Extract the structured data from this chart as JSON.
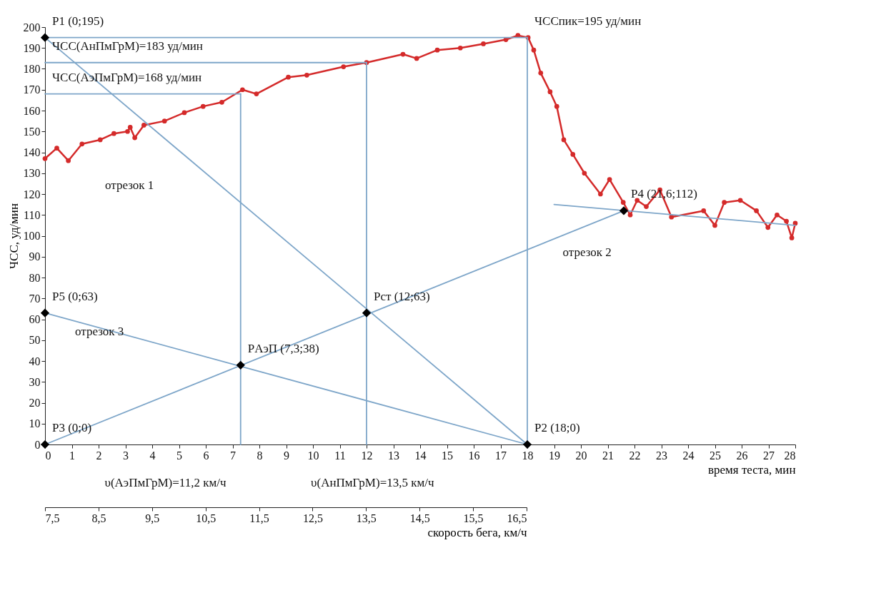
{
  "chart_data": {
    "type": "line",
    "xlabel": "время теста, мин",
    "ylabel": "ЧСС, уд/мин",
    "x2label": "скорость бега, км/ч",
    "xlim": [
      0,
      28
    ],
    "xticks": [
      0,
      1,
      2,
      3,
      4,
      5,
      6,
      7,
      8,
      9,
      10,
      11,
      12,
      13,
      14,
      15,
      16,
      17,
      18,
      19,
      20,
      21,
      22,
      23,
      24,
      25,
      26,
      27,
      28
    ],
    "ylim": [
      0,
      200
    ],
    "yticks": [
      0,
      10,
      20,
      30,
      40,
      50,
      60,
      70,
      80,
      90,
      100,
      110,
      120,
      130,
      140,
      150,
      160,
      170,
      180,
      190,
      200
    ],
    "x2lim": [
      7.5,
      16.5
    ],
    "x2ticks": [
      {
        "value": 7.5,
        "label": "7,5"
      },
      {
        "value": 8.5,
        "label": "8,5"
      },
      {
        "value": 9.5,
        "label": "9,5"
      },
      {
        "value": 10.5,
        "label": "10,5"
      },
      {
        "value": 11.5,
        "label": "11,5"
      },
      {
        "value": 12.5,
        "label": "12,5"
      },
      {
        "value": 13.5,
        "label": "13,5"
      },
      {
        "value": 14.5,
        "label": "14,5"
      },
      {
        "value": 15.5,
        "label": "15,5"
      },
      {
        "value": 16.5,
        "label": "16,5"
      }
    ],
    "grid": false,
    "series": [
      {
        "marker": "circle",
        "color": "#d42a2a",
        "x": [
          0,
          0.44,
          0.87,
          1.38,
          2.06,
          2.57,
          3.08,
          3.18,
          3.35,
          3.69,
          4.46,
          5.2,
          5.9,
          6.6,
          7.37,
          7.89,
          9.08,
          9.77,
          11.14,
          12.0,
          13.36,
          13.87,
          14.64,
          15.5,
          16.36,
          17.2,
          17.65,
          18.03,
          18.24,
          18.5,
          18.85,
          19.1,
          19.36,
          19.7,
          20.13,
          20.73,
          21.07,
          21.58,
          21.84,
          22.1,
          22.44,
          22.95,
          23.38,
          24.58,
          25.0,
          25.35,
          25.95,
          26.55,
          26.98,
          27.32,
          27.67,
          27.87,
          28
        ],
        "values": [
          137,
          142,
          136,
          144,
          146,
          149,
          150,
          152,
          147,
          153,
          155,
          159,
          162,
          164,
          170,
          168,
          176,
          177,
          181,
          183,
          187,
          185,
          189,
          190,
          192,
          194,
          196,
          195,
          189,
          178,
          169,
          162,
          146,
          139,
          130,
          120,
          127,
          116,
          110,
          117,
          114,
          122,
          109,
          112,
          105,
          116,
          117,
          112,
          104,
          110,
          107,
          99,
          106
        ]
      },
      {
        "type": "line",
        "color": "#7ea6c9",
        "x": [
          0,
          18
        ],
        "values": [
          195,
          0
        ]
      },
      {
        "type": "line",
        "color": "#7ea6c9",
        "x": [
          0,
          21.6
        ],
        "values": [
          0,
          112
        ]
      },
      {
        "type": "line",
        "color": "#7ea6c9",
        "x": [
          0,
          18
        ],
        "values": [
          63,
          0
        ]
      },
      {
        "type": "line",
        "color": "#7ea6c9",
        "x": [
          19,
          28
        ],
        "values": [
          115,
          105
        ]
      },
      {
        "type": "line",
        "color": "#7ea6c9",
        "x": [
          0,
          18
        ],
        "values": [
          195,
          195
        ]
      },
      {
        "type": "line",
        "color": "#7ea6c9",
        "x": [
          0,
          12
        ],
        "values": [
          183,
          183
        ]
      },
      {
        "type": "line",
        "color": "#7ea6c9",
        "x": [
          0,
          7.3
        ],
        "values": [
          168,
          168
        ]
      },
      {
        "type": "line",
        "color": "#7ea6c9",
        "x": [
          7.3,
          7.3
        ],
        "values": [
          0,
          168
        ]
      },
      {
        "type": "line",
        "color": "#7ea6c9",
        "x": [
          12,
          12
        ],
        "values": [
          0,
          183
        ]
      },
      {
        "type": "line",
        "color": "#7ea6c9",
        "x": [
          18,
          18
        ],
        "values": [
          0,
          195
        ]
      },
      {
        "type": "scatter",
        "marker": "diamond",
        "color": "#000000",
        "x": [
          0,
          18,
          0,
          21.6,
          0,
          7.3,
          12
        ],
        "values": [
          195,
          0,
          0,
          112,
          63,
          38,
          63
        ]
      }
    ],
    "annotations": [
      {
        "text": "P1 (0;195)",
        "x": 0,
        "y": 195
      },
      {
        "text": "P2 (18;0)",
        "x": 18,
        "y": 0
      },
      {
        "text": "P3 (0;0)",
        "x": 0,
        "y": 0
      },
      {
        "text": "P4 (21,6;112)",
        "x": 21.6,
        "y": 112
      },
      {
        "text": "P5 (0;63)",
        "x": 0,
        "y": 63
      },
      {
        "text": "PАэП (7,3;38)",
        "x": 7.3,
        "y": 38
      },
      {
        "text": "Pст (12;63)",
        "x": 12,
        "y": 63
      },
      {
        "text": "ЧСС(АнПмГрМ)=183 уд/мин",
        "x": 0,
        "y": 183
      },
      {
        "text": "ЧСС(АэПмГрМ)=168 уд/мин",
        "x": 0,
        "y": 168
      },
      {
        "text": "ЧССпик=195 уд/мин",
        "x": 18,
        "y": 195
      },
      "отрезок 1",
      "отрезок 2",
      "отрезок 3",
      "υ(АэПмГрМ)=11,2 км/ч",
      "υ(АнПмГрМ)=13,5 км/ч"
    ]
  }
}
